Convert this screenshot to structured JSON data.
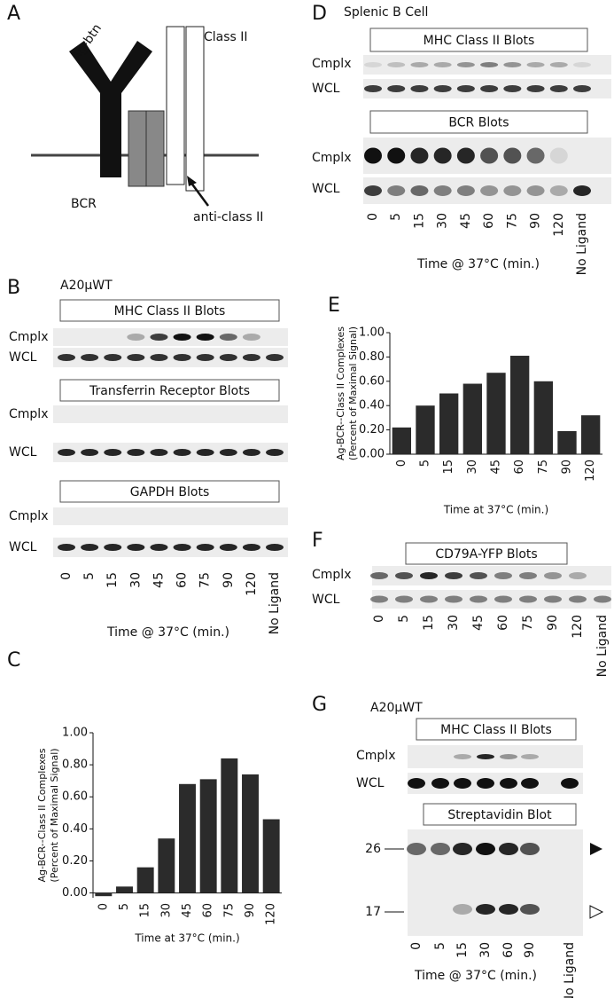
{
  "panel_a": {
    "label": "A",
    "antigen": "Ag-btn",
    "class_ii": "Class II",
    "bcr": "BCR",
    "antibody": "anti-class II"
  },
  "panel_b": {
    "label": "B",
    "cell": "A20μWT",
    "blots": [
      {
        "title": "MHC Class II Blots",
        "rows": [
          "Cmplx",
          "WCL"
        ]
      },
      {
        "title": "Transferrin Receptor Blots",
        "rows": [
          "Cmplx",
          "WCL"
        ]
      },
      {
        "title": "GAPDH Blots",
        "rows": [
          "Cmplx",
          "WCL"
        ]
      }
    ],
    "lanes": [
      "0",
      "5",
      "15",
      "30",
      "45",
      "60",
      "75",
      "90",
      "120",
      "No Ligand"
    ],
    "x_label": "Time @ 37°C (min.)"
  },
  "panel_d": {
    "label": "D",
    "cell": "Splenic B Cell",
    "blots": [
      {
        "title": "MHC Class II Blots",
        "rows": [
          "Cmplx",
          "WCL"
        ]
      },
      {
        "title": "BCR Blots",
        "rows": [
          "Cmplx",
          "WCL"
        ]
      }
    ],
    "lanes": [
      "0",
      "5",
      "15",
      "30",
      "45",
      "60",
      "75",
      "90",
      "120",
      "No Ligand"
    ],
    "x_label": "Time @ 37°C (min.)"
  },
  "panel_f": {
    "label": "F",
    "blots": [
      {
        "title": "CD79A-YFP Blots",
        "rows": [
          "Cmplx",
          "WCL"
        ]
      }
    ],
    "lanes": [
      "0",
      "5",
      "15",
      "30",
      "45",
      "60",
      "75",
      "90",
      "120",
      "No Ligand"
    ]
  },
  "panel_g": {
    "label": "G",
    "cell": "A20μWT",
    "blots": [
      {
        "title": "MHC Class II Blots",
        "rows": [
          "Cmplx",
          "WCL"
        ]
      },
      {
        "title": "Streptavidin Blot"
      }
    ],
    "markers": [
      "26",
      "17"
    ],
    "lanes": [
      "0",
      "5",
      "15",
      "30",
      "60",
      "90",
      "No Ligand"
    ],
    "x_label": "Time @ 37°C (min.)"
  },
  "chart_data": [
    {
      "type": "bar",
      "panel": "C",
      "y_label": [
        "Ag-BCR--Class II Complexes",
        "(Percent of Maximal Signal)"
      ],
      "x_label": "Time at 37°C (min.)",
      "categories": [
        "0",
        "5",
        "15",
        "30",
        "45",
        "60",
        "75",
        "90",
        "120"
      ],
      "values": [
        -0.02,
        0.04,
        0.16,
        0.34,
        0.68,
        0.71,
        0.84,
        0.74,
        0.46
      ],
      "color": "#2b2b2b",
      "ylim": [
        -0.03,
        1.0
      ],
      "yticks": [
        {
          "value": 0,
          "label": "0.00"
        },
        {
          "value": 0.2,
          "label": "0.20"
        },
        {
          "value": 0.4,
          "label": "0.40"
        },
        {
          "value": 0.6,
          "label": "0.60"
        },
        {
          "value": 0.8,
          "label": "0.80"
        },
        {
          "value": 1,
          "label": "1.00"
        }
      ]
    },
    {
      "type": "bar",
      "panel": "E",
      "y_label": [
        "Ag-BCR--Class II Complexes",
        "(Percent of Maximal Signal)"
      ],
      "x_label": "Time at 37°C (min.)",
      "categories": [
        "0",
        "5",
        "15",
        "30",
        "45",
        "60",
        "75",
        "90",
        "120"
      ],
      "values": [
        0.22,
        0.4,
        0.5,
        0.58,
        0.67,
        0.81,
        0.6,
        0.19,
        0.32
      ],
      "color": "#2b2b2b",
      "ylim": [
        0,
        1.0
      ],
      "yticks": [
        {
          "value": 0,
          "label": "0.00"
        },
        {
          "value": 0.2,
          "label": "0.20"
        },
        {
          "value": 0.4,
          "label": "0.40"
        },
        {
          "value": 0.6,
          "label": "0.60"
        },
        {
          "value": 0.8,
          "label": "0.80"
        },
        {
          "value": 1,
          "label": "1.00"
        }
      ]
    }
  ]
}
